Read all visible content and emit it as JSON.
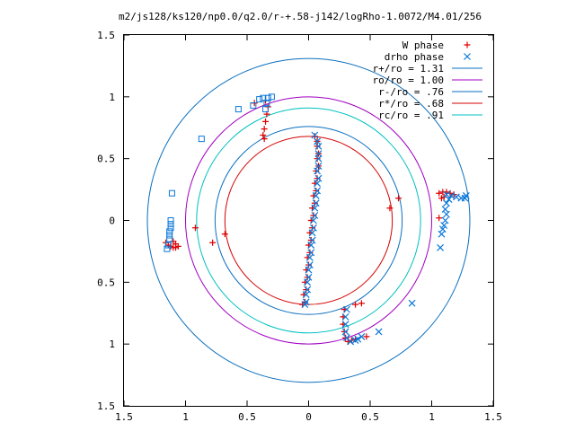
{
  "chart_data": {
    "type": "scatter",
    "title": "m2/js128/ks120/np0.0/q2.0/r-+.58-j142/logRho-1.0072/M4.01/256",
    "xlim": [
      -1.5,
      1.5
    ],
    "ylim": [
      -1.5,
      1.5
    ],
    "x_ticks": [
      -1.5,
      -1,
      -0.5,
      0,
      0.5,
      1,
      1.5
    ],
    "x_tick_labels": [
      "1.5",
      "1",
      "0.5",
      "0",
      "0.5",
      "1",
      "1.5"
    ],
    "y_ticks": [
      1.5,
      1,
      0.5,
      0,
      -0.5,
      -1,
      -1.5
    ],
    "y_tick_labels": [
      "1.5",
      "1",
      "0.5",
      "0",
      "0.5",
      "1",
      "1.5"
    ],
    "grid": false,
    "legend_position": "top-right",
    "circles": [
      {
        "name": "r+/ro = 1.31",
        "radius": 1.31,
        "color": "#0a6fbf"
      },
      {
        "name": "ro/ro = 1.00",
        "radius": 1.0,
        "color": "#a000c0"
      },
      {
        "name": "r-/ro = .76",
        "radius": 0.76,
        "color": "#0a6fbf"
      },
      {
        "name": "r*/ro = .68",
        "radius": 0.68,
        "color": "#d40000"
      },
      {
        "name": "rc/ro = .91",
        "radius": 0.91,
        "color": "#00c0c0"
      }
    ],
    "series": [
      {
        "name": "W phase",
        "marker": "plus",
        "color": "#e00000",
        "points": [
          [
            -0.05,
            -0.68
          ],
          [
            -0.04,
            -0.6
          ],
          [
            -0.03,
            -0.5
          ],
          [
            -0.02,
            -0.4
          ],
          [
            -0.01,
            -0.3
          ],
          [
            0.0,
            -0.2
          ],
          [
            0.01,
            -0.1
          ],
          [
            0.02,
            0.0
          ],
          [
            0.03,
            0.1
          ],
          [
            0.04,
            0.2
          ],
          [
            0.05,
            0.3
          ],
          [
            0.06,
            0.4
          ],
          [
            0.07,
            0.5
          ],
          [
            0.07,
            0.6
          ],
          [
            0.05,
            0.68
          ],
          [
            -0.03,
            -0.66
          ],
          [
            -0.02,
            -0.56
          ],
          [
            -0.01,
            -0.46
          ],
          [
            0.0,
            -0.36
          ],
          [
            0.01,
            -0.26
          ],
          [
            0.02,
            -0.16
          ],
          [
            0.03,
            -0.06
          ],
          [
            0.04,
            0.04
          ],
          [
            0.05,
            0.14
          ],
          [
            0.06,
            0.24
          ],
          [
            0.07,
            0.34
          ],
          [
            0.08,
            0.44
          ],
          [
            0.08,
            0.54
          ],
          [
            0.07,
            0.64
          ],
          [
            -1.16,
            -0.18
          ],
          [
            -1.14,
            -0.2
          ],
          [
            -1.12,
            -0.21
          ],
          [
            -1.1,
            -0.22
          ],
          [
            -1.08,
            -0.22
          ],
          [
            -1.06,
            -0.21
          ],
          [
            -1.08,
            -0.19
          ],
          [
            -1.1,
            -0.17
          ],
          [
            -0.92,
            -0.06
          ],
          [
            -0.78,
            -0.18
          ],
          [
            -0.68,
            -0.11
          ],
          [
            -0.44,
            0.95
          ],
          [
            -0.35,
            0.97
          ],
          [
            -0.33,
            0.92
          ],
          [
            -0.34,
            0.86
          ],
          [
            -0.35,
            0.8
          ],
          [
            -0.36,
            0.74
          ],
          [
            -0.37,
            0.69
          ],
          [
            -0.36,
            0.66
          ],
          [
            1.06,
            0.22
          ],
          [
            1.09,
            0.23
          ],
          [
            1.12,
            0.23
          ],
          [
            1.15,
            0.22
          ],
          [
            1.18,
            0.21
          ],
          [
            1.1,
            0.19
          ],
          [
            1.08,
            0.18
          ],
          [
            1.06,
            0.02
          ],
          [
            0.73,
            0.18
          ],
          [
            0.66,
            0.1
          ],
          [
            0.29,
            -0.72
          ],
          [
            0.28,
            -0.78
          ],
          [
            0.28,
            -0.84
          ],
          [
            0.29,
            -0.9
          ],
          [
            0.3,
            -0.95
          ],
          [
            0.32,
            -0.98
          ],
          [
            0.35,
            -0.97
          ],
          [
            0.38,
            -0.96
          ],
          [
            0.47,
            -0.94
          ],
          [
            0.38,
            -0.68
          ],
          [
            0.43,
            -0.67
          ]
        ]
      },
      {
        "name": "drho phase",
        "marker": "cross",
        "color": "#0a78d8",
        "points": [
          [
            -0.03,
            -0.68
          ],
          [
            -0.02,
            -0.6
          ],
          [
            -0.01,
            -0.5
          ],
          [
            0.0,
            -0.4
          ],
          [
            0.01,
            -0.3
          ],
          [
            0.02,
            -0.2
          ],
          [
            0.03,
            -0.1
          ],
          [
            0.04,
            0.0
          ],
          [
            0.05,
            0.1
          ],
          [
            0.06,
            0.2
          ],
          [
            0.07,
            0.3
          ],
          [
            0.07,
            0.4
          ],
          [
            0.08,
            0.5
          ],
          [
            0.08,
            0.6
          ],
          [
            0.05,
            0.69
          ],
          [
            -0.02,
            -0.66
          ],
          [
            -0.01,
            -0.56
          ],
          [
            0.0,
            -0.46
          ],
          [
            0.01,
            -0.36
          ],
          [
            0.02,
            -0.26
          ],
          [
            0.03,
            -0.16
          ],
          [
            0.04,
            -0.06
          ],
          [
            0.05,
            0.04
          ],
          [
            0.06,
            0.14
          ],
          [
            0.07,
            0.24
          ],
          [
            0.08,
            0.34
          ],
          [
            0.08,
            0.44
          ],
          [
            0.08,
            0.54
          ],
          [
            0.07,
            0.64
          ],
          [
            1.12,
            0.21
          ],
          [
            1.16,
            0.2
          ],
          [
            1.2,
            0.19
          ],
          [
            1.24,
            0.18
          ],
          [
            1.27,
            0.18
          ],
          [
            1.28,
            0.2
          ],
          [
            1.14,
            0.17
          ],
          [
            1.12,
            0.14
          ],
          [
            1.11,
            0.09
          ],
          [
            1.12,
            0.05
          ],
          [
            1.11,
            0.0
          ],
          [
            1.1,
            -0.04
          ],
          [
            1.09,
            -0.07
          ],
          [
            1.08,
            -0.11
          ],
          [
            1.07,
            -0.22
          ],
          [
            0.84,
            -0.67
          ],
          [
            0.31,
            -0.72
          ],
          [
            0.3,
            -0.78
          ],
          [
            0.3,
            -0.84
          ],
          [
            0.3,
            -0.9
          ],
          [
            0.31,
            -0.95
          ],
          [
            0.34,
            -0.98
          ],
          [
            0.38,
            -0.97
          ],
          [
            0.4,
            -0.96
          ],
          [
            0.43,
            -0.94
          ],
          [
            0.57,
            -0.9
          ]
        ]
      },
      {
        "name": "",
        "marker": "square",
        "color": "#0a78d8",
        "points": [
          [
            -0.45,
            0.93
          ],
          [
            -0.4,
            0.98
          ],
          [
            -0.37,
            0.99
          ],
          [
            -0.33,
            0.99
          ],
          [
            -0.3,
            1.0
          ],
          [
            -0.34,
            0.95
          ],
          [
            -0.35,
            0.9
          ],
          [
            -0.57,
            0.9
          ],
          [
            -0.87,
            0.66
          ],
          [
            -1.11,
            0.22
          ],
          [
            -1.12,
            0.0
          ],
          [
            -1.12,
            -0.03
          ],
          [
            -1.12,
            -0.06
          ],
          [
            -1.13,
            -0.09
          ],
          [
            -1.13,
            -0.12
          ],
          [
            -1.13,
            -0.15
          ],
          [
            -1.14,
            -0.2
          ],
          [
            -1.15,
            -0.23
          ]
        ]
      }
    ]
  }
}
